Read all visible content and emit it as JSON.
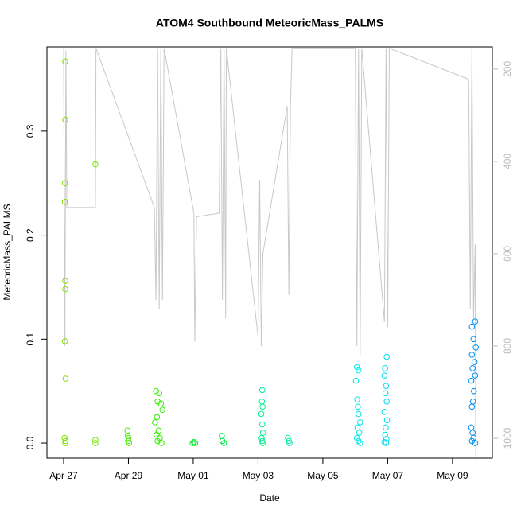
{
  "chart_data": {
    "type": "scatter",
    "title": "ATOM4 Southbound MeteoricMass_PALMS",
    "xlabel": "Date",
    "ylabel": "MeteoricMass_PALMS",
    "xlim": [
      -0.515,
      13.23
    ],
    "xticks": [
      {
        "value": 0,
        "label": "Apr 27"
      },
      {
        "value": 2,
        "label": "Apr 29"
      },
      {
        "value": 4,
        "label": "May 01"
      },
      {
        "value": 6,
        "label": "May 03"
      },
      {
        "value": 8,
        "label": "May 05"
      },
      {
        "value": 10,
        "label": "May 07"
      },
      {
        "value": 12,
        "label": "May 09"
      }
    ],
    "ylim": [
      -0.0145,
      0.381
    ],
    "yticks": [
      {
        "value": 0,
        "label": "0.0"
      },
      0.1,
      0.2,
      0.3
    ],
    "y2lim": [
      1043,
      152
    ],
    "y2ticks": [
      200,
      400,
      600,
      800,
      1000
    ],
    "y2color": "#bbbbbb",
    "series": [
      {
        "color": "#80e000",
        "x": [
          0.05,
          0.05,
          0.04,
          0.04,
          0.05,
          0.05,
          0.04,
          0.06,
          0.03,
          0.06,
          0.05
        ],
        "values": [
          0.367,
          0.311,
          0.25,
          0.232,
          0.156,
          0.148,
          0.098,
          0.062,
          0.005,
          0.002,
          0.0
        ]
      },
      {
        "color": "#70e800",
        "x": [
          0.98,
          0.98,
          0.98
        ],
        "values": [
          0.268,
          0.003,
          0.0
        ]
      },
      {
        "color": "#48f000",
        "x": [
          1.97,
          2.0,
          1.99,
          2.02,
          1.98
        ],
        "values": [
          0.012,
          0.005,
          0.002,
          0.0,
          0.007
        ]
      },
      {
        "color": "#30f000",
        "x": [
          2.85,
          2.95,
          2.9,
          3.0,
          3.05,
          2.88,
          2.82,
          2.93,
          2.87,
          2.97,
          2.9,
          3.02
        ],
        "values": [
          0.05,
          0.048,
          0.04,
          0.038,
          0.032,
          0.025,
          0.02,
          0.012,
          0.008,
          0.005,
          0.002,
          0.0
        ]
      },
      {
        "color": "#00f030",
        "x": [
          3.98,
          4.02,
          4.06
        ],
        "values": [
          0.0,
          0.001,
          0.0
        ]
      },
      {
        "color": "#00f048",
        "x": [
          4.88,
          4.9,
          4.95
        ],
        "values": [
          0.007,
          0.002,
          0.0
        ]
      },
      {
        "color": "#00f090",
        "x": [
          6.13,
          6.12,
          6.14,
          6.1,
          6.13,
          6.15,
          6.11,
          6.13,
          6.14
        ],
        "values": [
          0.051,
          0.04,
          0.035,
          0.028,
          0.018,
          0.01,
          0.005,
          0.002,
          0.0
        ]
      },
      {
        "color": "#00f0b0",
        "x": [
          6.92,
          6.95,
          6.97
        ],
        "values": [
          0.005,
          0.002,
          0.0
        ]
      },
      {
        "color": "#00e8e8",
        "x": [
          9.05,
          9.1,
          9.02,
          9.06,
          9.08,
          9.1,
          9.15,
          9.07,
          9.12,
          9.05,
          9.1,
          9.15
        ],
        "values": [
          0.073,
          0.07,
          0.06,
          0.042,
          0.035,
          0.028,
          0.02,
          0.015,
          0.01,
          0.005,
          0.002,
          0.0
        ]
      },
      {
        "color": "#00dcf0",
        "x": [
          9.97,
          9.92,
          9.9,
          9.95,
          9.93,
          9.97,
          9.9,
          9.98,
          9.94,
          9.92,
          9.96,
          9.9,
          9.95
        ],
        "values": [
          0.083,
          0.072,
          0.065,
          0.055,
          0.048,
          0.04,
          0.03,
          0.022,
          0.015,
          0.008,
          0.004,
          0.001,
          0.0
        ]
      },
      {
        "color": "#0090f0",
        "x": [
          12.7,
          12.6,
          12.65,
          12.72,
          12.6,
          12.68,
          12.62,
          12.7,
          12.58,
          12.66,
          12.63,
          12.6,
          12.58,
          12.62,
          12.65,
          12.6,
          12.7
        ],
        "values": [
          0.117,
          0.112,
          0.1,
          0.092,
          0.085,
          0.078,
          0.072,
          0.065,
          0.06,
          0.05,
          0.04,
          0.035,
          0.015,
          0.01,
          0.005,
          0.002,
          0.0
        ]
      },
      {
        "type": "line",
        "axis": "y2",
        "color": "#c8c8c8",
        "x": [
          0,
          0.04,
          0.07,
          0.1,
          0.98,
          1.0,
          2.8,
          2.85,
          2.9,
          2.95,
          3.0,
          3.05,
          3.1,
          4.02,
          4.05,
          4.1,
          4.8,
          4.85,
          4.9,
          4.95,
          5.0,
          5.02,
          6.0,
          6.05,
          6.1,
          6.15,
          6.9,
          6.95,
          7.0,
          7.05,
          9.0,
          9.05,
          9.1,
          9.15,
          9.2,
          9.9,
          9.95,
          10.0,
          10.05,
          12.5,
          12.55,
          12.6,
          12.65,
          12.7,
          12.72
        ],
        "values": [
          155,
          800,
          160,
          500,
          500,
          155,
          500,
          700,
          155,
          720,
          155,
          700,
          155,
          512,
          790,
          520,
          512,
          155,
          700,
          155,
          740,
          155,
          780,
          440,
          800,
          600,
          280,
          690,
          280,
          155,
          155,
          800,
          155,
          820,
          155,
          748,
          155,
          760,
          155,
          222,
          720,
          155,
          740,
          580,
          1043
        ]
      }
    ]
  }
}
